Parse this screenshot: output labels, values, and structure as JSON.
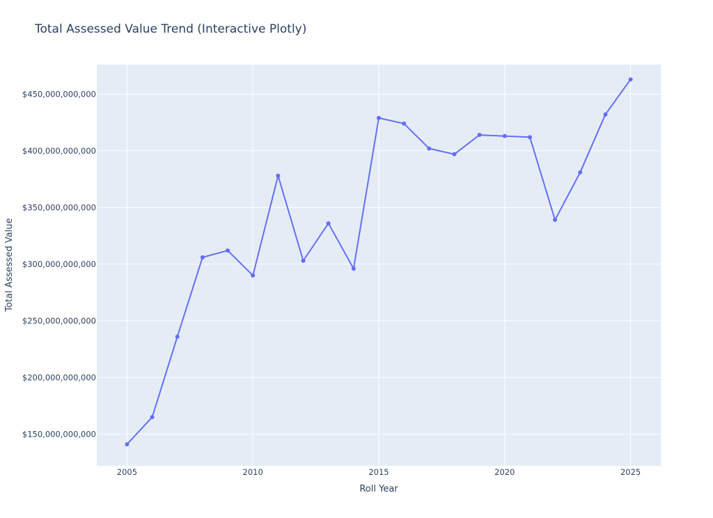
{
  "chart_data": {
    "type": "line",
    "title": "Total Assessed Value Trend (Interactive Plotly)",
    "xlabel": "Roll Year",
    "ylabel": "Total Assessed Value",
    "x": [
      2005,
      2006,
      2007,
      2008,
      2009,
      2010,
      2011,
      2012,
      2013,
      2014,
      2015,
      2016,
      2017,
      2018,
      2019,
      2020,
      2021,
      2022,
      2023,
      2024,
      2025
    ],
    "series": [
      {
        "values": [
          141000000000,
          165000000000,
          236000000000,
          306000000000,
          312000000000,
          290000000000,
          378000000000,
          303000000000,
          336000000000,
          296000000000,
          429000000000,
          424000000000,
          402000000000,
          397000000000,
          414000000000,
          413000000000,
          412000000000,
          339000000000,
          381000000000,
          432000000000,
          463000000000
        ],
        "color": "#636efa"
      }
    ],
    "xlim": [
      2003.8,
      2026.2
    ],
    "ylim": [
      122000000000,
      476000000000
    ],
    "xticks": [
      2005,
      2010,
      2015,
      2020,
      2025
    ],
    "xtick_labels": [
      "2005",
      "2010",
      "2015",
      "2020",
      "2025"
    ],
    "yticks": [
      150000000000,
      200000000000,
      250000000000,
      300000000000,
      350000000000,
      400000000000,
      450000000000
    ],
    "ytick_labels": [
      "$150,000,000,000",
      "$200,000,000,000",
      "$250,000,000,000",
      "$300,000,000,000",
      "$350,000,000,000",
      "$400,000,000,000",
      "$450,000,000,000"
    ],
    "grid": true,
    "plot_bg": "#e5ecf6",
    "grid_color": "#ffffff",
    "text_color": "#2a3f5f"
  }
}
